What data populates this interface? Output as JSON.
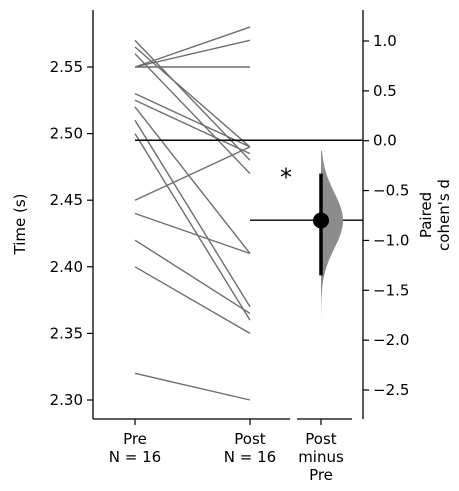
{
  "chart_data": {
    "type": "estimation-plot",
    "left_axis": {
      "ylabel": "Time (s)",
      "ylim": [
        2.29,
        2.588
      ],
      "ticks": [
        2.3,
        2.35,
        2.4,
        2.45,
        2.5,
        2.55
      ],
      "tick_labels": [
        "2.30",
        "2.35",
        "2.40",
        "2.45",
        "2.50",
        "2.55"
      ]
    },
    "right_axis": {
      "ylabel_lines": [
        "Paired",
        "cohen's d"
      ],
      "ticks": [
        1.0,
        0.5,
        0.0,
        -0.5,
        -1.0,
        -1.5,
        -2.0,
        -2.5
      ],
      "tick_labels": [
        "1.0",
        "0.5",
        "0.0",
        "−0.5",
        "−1.0",
        "−1.5",
        "−2.0",
        "−2.5"
      ]
    },
    "groups": [
      {
        "label_lines": [
          "Pre",
          "N = 16"
        ]
      },
      {
        "label_lines": [
          "Post",
          "N = 16"
        ]
      },
      {
        "label_lines": [
          "Post",
          "minus",
          "Pre"
        ]
      }
    ],
    "pairs": [
      {
        "pre": 2.57,
        "post": 2.48
      },
      {
        "pre": 2.565,
        "post": 2.49
      },
      {
        "pre": 2.56,
        "post": 2.47
      },
      {
        "pre": 2.55,
        "post": 2.58
      },
      {
        "pre": 2.55,
        "post": 2.57
      },
      {
        "pre": 2.55,
        "post": 2.55
      },
      {
        "pre": 2.53,
        "post": 2.49
      },
      {
        "pre": 2.525,
        "post": 2.485
      },
      {
        "pre": 2.52,
        "post": 2.41
      },
      {
        "pre": 2.51,
        "post": 2.37
      },
      {
        "pre": 2.5,
        "post": 2.36
      },
      {
        "pre": 2.45,
        "post": 2.49
      },
      {
        "pre": 2.44,
        "post": 2.41
      },
      {
        "pre": 2.42,
        "post": 2.365
      },
      {
        "pre": 2.4,
        "post": 2.35
      },
      {
        "pre": 2.32,
        "post": 2.3
      }
    ],
    "effect_size": {
      "estimate": -0.8,
      "ci": [
        -1.35,
        -0.33
      ],
      "distribution_range": [
        -2.6,
        -0.1
      ],
      "significance": "*",
      "zero_line_data": 2.495,
      "reference_line_data": 2.435
    },
    "colors": {
      "pair_lines": "#6e6e6e",
      "distribution": "#8c8c8c",
      "point": "#000000"
    }
  }
}
